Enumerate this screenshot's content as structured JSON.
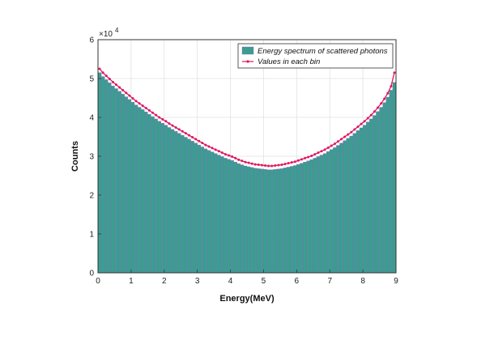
{
  "chart_data": {
    "type": "bar",
    "xlabel": "Energy(MeV)",
    "ylabel": "Counts",
    "y_exponent_label": "×10",
    "y_exponent": "4",
    "xlim": [
      0,
      9
    ],
    "ylim": [
      0,
      60000
    ],
    "xticks": [
      "0",
      "1",
      "2",
      "3",
      "4",
      "5",
      "6",
      "7",
      "8",
      "9"
    ],
    "yticks": [
      "0",
      "1",
      "2",
      "3",
      "4",
      "5",
      "6"
    ],
    "grid": true,
    "legend_position": "top-right",
    "bin_width": 0.1,
    "bin_centers": [
      0.05,
      0.15,
      0.25,
      0.35,
      0.45,
      0.55,
      0.65,
      0.75,
      0.85,
      0.95,
      1.05,
      1.15,
      1.25,
      1.35,
      1.45,
      1.55,
      1.65,
      1.75,
      1.85,
      1.95,
      2.05,
      2.15,
      2.25,
      2.35,
      2.45,
      2.55,
      2.65,
      2.75,
      2.85,
      2.95,
      3.05,
      3.15,
      3.25,
      3.35,
      3.45,
      3.55,
      3.65,
      3.75,
      3.85,
      3.95,
      4.05,
      4.15,
      4.25,
      4.35,
      4.45,
      4.55,
      4.65,
      4.75,
      4.85,
      4.95,
      5.05,
      5.15,
      5.25,
      5.35,
      5.45,
      5.55,
      5.65,
      5.75,
      5.85,
      5.95,
      6.05,
      6.15,
      6.25,
      6.35,
      6.45,
      6.55,
      6.65,
      6.75,
      6.85,
      6.95,
      7.05,
      7.15,
      7.25,
      7.35,
      7.45,
      7.55,
      7.65,
      7.75,
      7.85,
      7.95,
      8.05,
      8.15,
      8.25,
      8.35,
      8.45,
      8.55,
      8.65,
      8.75,
      8.85,
      8.95
    ],
    "series": [
      {
        "name": "Energy spectrum of scattered photons",
        "kind": "bar",
        "color": "#3a9e8f",
        "edge_color": "#8b5fc6",
        "values": [
          51500,
          50500,
          49700,
          48900,
          48100,
          47400,
          46700,
          46000,
          45300,
          44600,
          43900,
          43200,
          42600,
          42000,
          41400,
          40800,
          40200,
          39600,
          39000,
          38500,
          38000,
          37400,
          36900,
          36400,
          35900,
          35400,
          34900,
          34400,
          33900,
          33400,
          32900,
          32400,
          31900,
          31500,
          31100,
          30700,
          30300,
          29900,
          29500,
          29200,
          28900,
          28500,
          28100,
          27800,
          27500,
          27300,
          27100,
          26900,
          26800,
          26700,
          26600,
          26500,
          26500,
          26600,
          26700,
          26800,
          27000,
          27200,
          27400,
          27600,
          27900,
          28200,
          28500,
          28800,
          29100,
          29500,
          29900,
          30300,
          30700,
          31200,
          31700,
          32200,
          32800,
          33400,
          34000,
          34600,
          35200,
          35900,
          36600,
          37300,
          38000,
          38800,
          39600,
          40500,
          41500,
          42600,
          43800,
          45200,
          47000,
          49000
        ]
      },
      {
        "name": "Values in each bin",
        "kind": "line-marker",
        "color": "#e0185e",
        "values": [
          52500,
          51500,
          50700,
          49900,
          49100,
          48400,
          47700,
          47000,
          46300,
          45600,
          44900,
          44200,
          43600,
          43000,
          42400,
          41800,
          41200,
          40600,
          40000,
          39500,
          39000,
          38400,
          37900,
          37400,
          36900,
          36400,
          35900,
          35400,
          34900,
          34400,
          33900,
          33400,
          32900,
          32500,
          32100,
          31700,
          31300,
          30900,
          30500,
          30200,
          29900,
          29500,
          29100,
          28800,
          28500,
          28300,
          28100,
          27900,
          27800,
          27700,
          27600,
          27500,
          27500,
          27600,
          27700,
          27800,
          28000,
          28200,
          28400,
          28600,
          28900,
          29200,
          29500,
          29800,
          30100,
          30500,
          30900,
          31300,
          31700,
          32200,
          32700,
          33200,
          33800,
          34400,
          35000,
          35600,
          36200,
          36900,
          37600,
          38300,
          39000,
          39800,
          40600,
          41500,
          42500,
          43600,
          44800,
          46200,
          48000,
          51500
        ]
      }
    ]
  }
}
